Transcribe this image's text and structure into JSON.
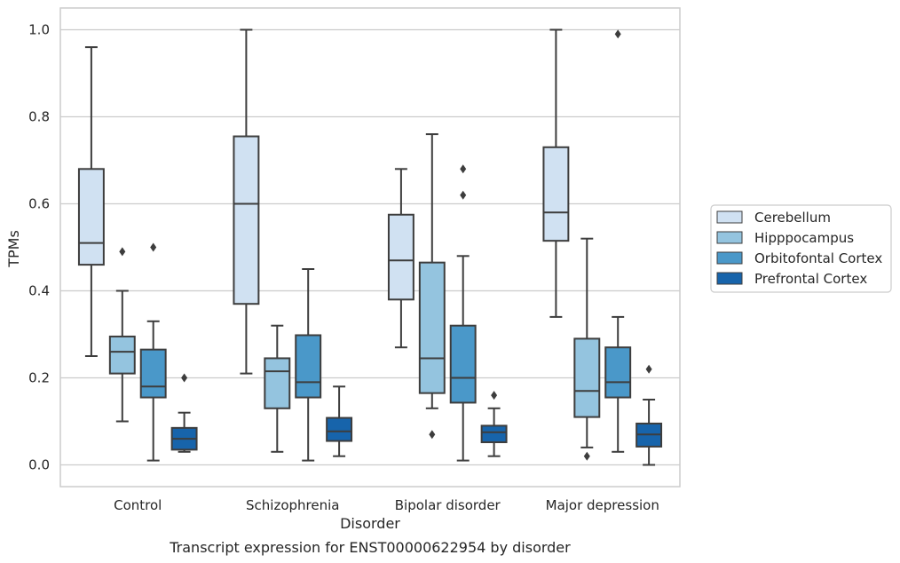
{
  "caption": "Transcript expression for ENST00000622954 by disorder",
  "colors": {
    "grid": "#cccccc",
    "frame": "#cccccc",
    "line": "#3d3d3d",
    "series": [
      "#d0e1f2",
      "#94c4df",
      "#4a98c9",
      "#1764ab"
    ]
  },
  "chart_data": {
    "type": "boxplot",
    "title": "",
    "xlabel": "Disorder",
    "ylabel": "TPMs",
    "ylim": [
      -0.05,
      1.05
    ],
    "yticks": [
      "0.0",
      "0.2",
      "0.4",
      "0.6",
      "0.8",
      "1.0"
    ],
    "grid": "horizontal",
    "legend_position": "right",
    "categories": [
      "Control",
      "Schizophrenia",
      "Bipolar disorder",
      "Major depression"
    ],
    "series": [
      {
        "name": "Cerebellum",
        "boxes": [
          {
            "whislo": 0.25,
            "q1": 0.46,
            "med": 0.51,
            "q3": 0.68,
            "whishi": 0.96,
            "fliers": []
          },
          {
            "whislo": 0.21,
            "q1": 0.37,
            "med": 0.6,
            "q3": 0.755,
            "whishi": 1.0,
            "fliers": []
          },
          {
            "whislo": 0.27,
            "q1": 0.38,
            "med": 0.47,
            "q3": 0.575,
            "whishi": 0.68,
            "fliers": []
          },
          {
            "whislo": 0.34,
            "q1": 0.515,
            "med": 0.58,
            "q3": 0.73,
            "whishi": 1.0,
            "fliers": []
          }
        ]
      },
      {
        "name": "Hipppocampus",
        "boxes": [
          {
            "whislo": 0.1,
            "q1": 0.21,
            "med": 0.26,
            "q3": 0.295,
            "whishi": 0.4,
            "fliers": [
              0.49
            ]
          },
          {
            "whislo": 0.03,
            "q1": 0.13,
            "med": 0.215,
            "q3": 0.245,
            "whishi": 0.32,
            "fliers": []
          },
          {
            "whislo": 0.13,
            "q1": 0.165,
            "med": 0.245,
            "q3": 0.465,
            "whishi": 0.76,
            "fliers": [
              0.07
            ]
          },
          {
            "whislo": 0.04,
            "q1": 0.11,
            "med": 0.17,
            "q3": 0.29,
            "whishi": 0.52,
            "fliers": [
              0.02
            ]
          }
        ]
      },
      {
        "name": "Orbitofontal Cortex",
        "boxes": [
          {
            "whislo": 0.01,
            "q1": 0.155,
            "med": 0.18,
            "q3": 0.265,
            "whishi": 0.33,
            "fliers": [
              0.5
            ]
          },
          {
            "whislo": 0.01,
            "q1": 0.155,
            "med": 0.19,
            "q3": 0.298,
            "whishi": 0.45,
            "fliers": []
          },
          {
            "whislo": 0.01,
            "q1": 0.143,
            "med": 0.2,
            "q3": 0.32,
            "whishi": 0.48,
            "fliers": [
              0.62,
              0.68
            ]
          },
          {
            "whislo": 0.03,
            "q1": 0.155,
            "med": 0.19,
            "q3": 0.27,
            "whishi": 0.34,
            "fliers": [
              0.99
            ]
          }
        ]
      },
      {
        "name": "Prefrontal Cortex",
        "boxes": [
          {
            "whislo": 0.03,
            "q1": 0.035,
            "med": 0.06,
            "q3": 0.085,
            "whishi": 0.12,
            "fliers": [
              0.2
            ]
          },
          {
            "whislo": 0.02,
            "q1": 0.055,
            "med": 0.077,
            "q3": 0.108,
            "whishi": 0.18,
            "fliers": []
          },
          {
            "whislo": 0.02,
            "q1": 0.052,
            "med": 0.075,
            "q3": 0.09,
            "whishi": 0.13,
            "fliers": [
              0.16
            ]
          },
          {
            "whislo": 0.0,
            "q1": 0.042,
            "med": 0.07,
            "q3": 0.095,
            "whishi": 0.15,
            "fliers": [
              0.22
            ]
          }
        ]
      }
    ]
  }
}
